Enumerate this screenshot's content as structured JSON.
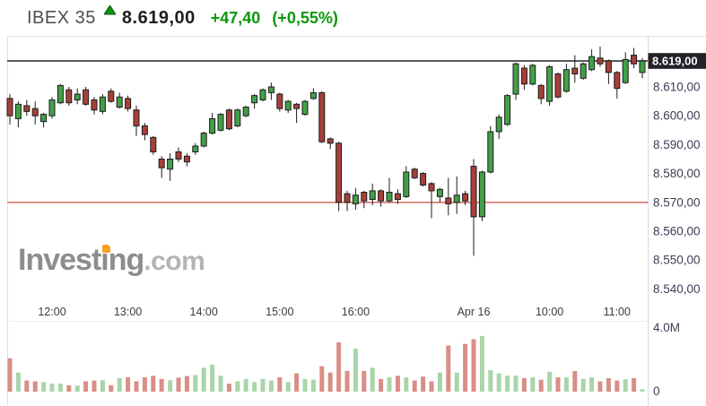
{
  "header": {
    "symbol": "IBEX 35",
    "price": "8.619,00",
    "change": "+47,40",
    "change_pct": "(+0,55%)",
    "direction": "up"
  },
  "watermark": {
    "main": "Investing",
    "suffix": ".com"
  },
  "colors": {
    "header_green": "#0b970b",
    "candle_up": "#43a047",
    "candle_down": "#a83f39",
    "candle_border": "#1c1c1c",
    "volume_up": "#a8d5aa",
    "volume_down": "#d98e86",
    "current_price_line": "#5b5b60",
    "current_price_tag_bg": "#222228",
    "prev_close_line": "#d4766a",
    "axis_text": "#3d3d55",
    "frame": "#e0e0e0"
  },
  "chart_data": {
    "type": "candlestick_with_volume",
    "title": "IBEX 35 intraday price with volume",
    "candle_fields": [
      "open",
      "high",
      "low",
      "close"
    ],
    "current_price": {
      "label": "8.619,00",
      "price": 8619
    },
    "prev_close_line": {
      "price": 8570
    },
    "y_axis_labels": [
      {
        "label": "8.610,00",
        "price": 8610
      },
      {
        "label": "8.600,00",
        "price": 8600
      },
      {
        "label": "8.590,00",
        "price": 8590
      },
      {
        "label": "8.580,00",
        "price": 8580
      },
      {
        "label": "8.570,00",
        "price": 8570
      },
      {
        "label": "8.560,00",
        "price": 8560
      },
      {
        "label": "8.550,00",
        "price": 8550
      },
      {
        "label": "8.540,00",
        "price": 8540
      }
    ],
    "volume_axis_labels": [
      "4.0M",
      "0"
    ],
    "volume_axis_max": 4.0,
    "x_axis_labels": [
      {
        "label": "12:00",
        "i": 5
      },
      {
        "label": "13:00",
        "i": 14
      },
      {
        "label": "14:00",
        "i": 23
      },
      {
        "label": "15:00",
        "i": 32
      },
      {
        "label": "16:00",
        "i": 41
      },
      {
        "label": "Apr 16",
        "i": 55
      },
      {
        "label": "10:00",
        "i": 64
      },
      {
        "label": "11:00",
        "i": 72
      }
    ],
    "ylim": [
      8536,
      8625
    ],
    "candles": [
      [
        8606,
        8607.5,
        8597,
        8600
      ],
      [
        8599,
        8605,
        8596,
        8604
      ],
      [
        8603.5,
        8605.5,
        8600,
        8601.5
      ],
      [
        8602.5,
        8605,
        8597,
        8600
      ],
      [
        8598,
        8601,
        8596,
        8600.5
      ],
      [
        8600,
        8606.5,
        8599,
        8605.5
      ],
      [
        8604.5,
        8611,
        8604,
        8610.5
      ],
      [
        8609,
        8610,
        8603.5,
        8604.5
      ],
      [
        8605.5,
        8609.5,
        8604,
        8607.5
      ],
      [
        8609,
        8610,
        8603.5,
        8604
      ],
      [
        8605.5,
        8606.5,
        8600.5,
        8602
      ],
      [
        8601.5,
        8607.5,
        8600.5,
        8606.5
      ],
      [
        8608.5,
        8609.5,
        8604.5,
        8605
      ],
      [
        8603,
        8608,
        8602.5,
        8606.5
      ],
      [
        8606,
        8607,
        8601.5,
        8602.5
      ],
      [
        8602,
        8603.5,
        8593,
        8596.5
      ],
      [
        8596.5,
        8597.5,
        8591.5,
        8593.5
      ],
      [
        8592.5,
        8593,
        8586.5,
        8587.5
      ],
      [
        8585,
        8586,
        8578.5,
        8582
      ],
      [
        8581.5,
        8587,
        8577.5,
        8585
      ],
      [
        8587.5,
        8589,
        8584,
        8585
      ],
      [
        8586,
        8587,
        8582.5,
        8584
      ],
      [
        8587.5,
        8590.5,
        8586.5,
        8589.5
      ],
      [
        8589.5,
        8594.5,
        8589,
        8594
      ],
      [
        8594,
        8601,
        8593.5,
        8599
      ],
      [
        8595,
        8601,
        8594.5,
        8600.5
      ],
      [
        8602,
        8602.5,
        8595,
        8595.5
      ],
      [
        8596.5,
        8602.5,
        8596,
        8602
      ],
      [
        8600,
        8603.5,
        8599.5,
        8603
      ],
      [
        8604.5,
        8607.5,
        8602.5,
        8607
      ],
      [
        8605.5,
        8609.5,
        8605,
        8609
      ],
      [
        8608,
        8611.5,
        8605.5,
        8610
      ],
      [
        8607.5,
        8608,
        8601.5,
        8602.5
      ],
      [
        8602,
        8605.5,
        8601,
        8605
      ],
      [
        8604,
        8604.5,
        8597.5,
        8602.5
      ],
      [
        8600.5,
        8605.5,
        8600,
        8605
      ],
      [
        8606,
        8609.5,
        8605.5,
        8608
      ],
      [
        8608,
        8608.5,
        8590.5,
        8591
      ],
      [
        8592,
        8592.5,
        8588.5,
        8590.5
      ],
      [
        8590.5,
        8591,
        8567,
        8570
      ],
      [
        8573,
        8574,
        8567,
        8570
      ],
      [
        8569.5,
        8575,
        8567.5,
        8572.5
      ],
      [
        8573.5,
        8574,
        8568,
        8570.5
      ],
      [
        8571,
        8576.5,
        8569,
        8574
      ],
      [
        8574,
        8574.5,
        8568.5,
        8570.5
      ],
      [
        8570.5,
        8578.5,
        8570,
        8573.5
      ],
      [
        8573,
        8574.5,
        8569.5,
        8571
      ],
      [
        8572,
        8582.5,
        8571.5,
        8580.5
      ],
      [
        8581.5,
        8582,
        8578,
        8578.5
      ],
      [
        8580,
        8580.5,
        8575.5,
        8576
      ],
      [
        8576.5,
        8577,
        8564.5,
        8574
      ],
      [
        8572,
        8575,
        8570,
        8574.5
      ],
      [
        8571.5,
        8578.5,
        8565.5,
        8569.5
      ],
      [
        8570,
        8579,
        8566,
        8572.5
      ],
      [
        8573,
        8574,
        8569,
        8570.5
      ],
      [
        8582.5,
        8585,
        8551.5,
        8565
      ],
      [
        8565,
        8581,
        8563.5,
        8580.5
      ],
      [
        8580.5,
        8596.5,
        8580,
        8594.5
      ],
      [
        8594.5,
        8600.5,
        8592,
        8599.5
      ],
      [
        8597,
        8607.5,
        8596.5,
        8607
      ],
      [
        8607.5,
        8618.5,
        8605.5,
        8618
      ],
      [
        8616.5,
        8617.5,
        8609,
        8611
      ],
      [
        8611,
        8618,
        8610.5,
        8617.5
      ],
      [
        8610.5,
        8611,
        8604,
        8606
      ],
      [
        8605,
        8617.5,
        8603.5,
        8617
      ],
      [
        8614.5,
        8615,
        8606,
        8606.5
      ],
      [
        8608.5,
        8618,
        8608,
        8616
      ],
      [
        8616.5,
        8621,
        8611.5,
        8614.5
      ],
      [
        8613,
        8618.5,
        8612.5,
        8618
      ],
      [
        8616,
        8623,
        8615.5,
        8620.5
      ],
      [
        8620,
        8624,
        8617,
        8618
      ],
      [
        8619,
        8619.5,
        8611,
        8615
      ],
      [
        8615,
        8615.5,
        8606,
        8609.5
      ],
      [
        8611.5,
        8622,
        8611,
        8619.5
      ],
      [
        8621,
        8623.5,
        8616.5,
        8618
      ],
      [
        8615,
        8620,
        8613,
        8619
      ]
    ],
    "volumes": [
      2.1,
      1.2,
      0.7,
      0.65,
      0.6,
      0.5,
      0.5,
      0.4,
      0.38,
      0.65,
      0.7,
      0.72,
      0.4,
      0.85,
      0.9,
      0.65,
      0.9,
      1.0,
      0.8,
      0.72,
      0.88,
      0.98,
      1.05,
      1.5,
      1.7,
      1.0,
      0.5,
      0.65,
      0.8,
      0.6,
      0.8,
      0.7,
      0.9,
      0.6,
      1.15,
      0.8,
      0.75,
      1.6,
      1.2,
      3.1,
      1.3,
      2.7,
      1.3,
      1.5,
      0.8,
      0.9,
      1.0,
      0.9,
      0.7,
      0.95,
      0.65,
      1.2,
      2.9,
      1.2,
      3.0,
      3.3,
      3.5,
      1.35,
      1.15,
      1.0,
      1.0,
      0.85,
      0.9,
      0.75,
      1.25,
      0.9,
      0.9,
      1.3,
      0.8,
      0.9,
      0.65,
      0.85,
      0.7,
      0.78,
      0.85,
      0.15
    ]
  }
}
